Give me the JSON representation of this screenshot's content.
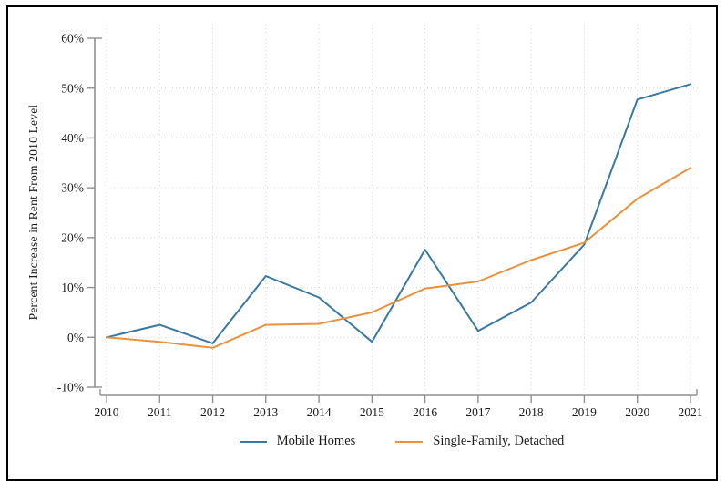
{
  "window": {
    "background": "#ffffff",
    "frame_border_color": "#000000"
  },
  "chart_data": {
    "type": "line",
    "title": "",
    "xlabel": "",
    "ylabel": "Percent Increase in Rent From 2010 Level",
    "categories": [
      "2010",
      "2011",
      "2012",
      "2013",
      "2014",
      "2015",
      "2016",
      "2017",
      "2018",
      "2019",
      "2020",
      "2021"
    ],
    "series": [
      {
        "name": "Mobile Homes",
        "color": "#3878a2",
        "values": [
          0,
          2.5,
          -1.2,
          12.3,
          8.0,
          -0.9,
          17.6,
          1.3,
          7.0,
          18.6,
          47.7,
          50.8
        ]
      },
      {
        "name": "Single-Family, Detached",
        "color": "#e9923e",
        "values": [
          0,
          -0.9,
          -2.1,
          2.5,
          2.7,
          5.0,
          9.8,
          11.2,
          15.5,
          19.0,
          27.8,
          34.0
        ]
      }
    ],
    "y_ticks": {
      "values": [
        60,
        50,
        40,
        30,
        20,
        10,
        0,
        -10
      ],
      "labels": [
        "60%",
        "50%",
        "40%",
        "30%",
        "20%",
        "10%",
        "0%",
        "-10%"
      ]
    },
    "y_gridlines": [
      50,
      40,
      30,
      20,
      10,
      0
    ],
    "ylim": [
      -10,
      60
    ],
    "grid": "dotted",
    "legend_position": "bottom-center",
    "colors": {
      "axis": "#909090",
      "grid": "#d4d4d4",
      "tick_text": "#1a1a1a"
    }
  }
}
